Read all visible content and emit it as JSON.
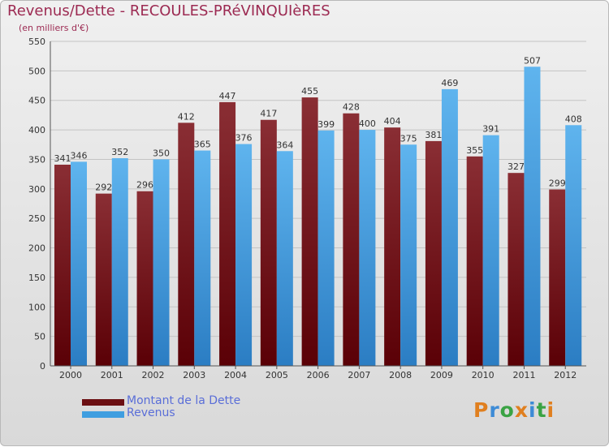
{
  "header": {
    "title": "Revenus/Dette - RECOULES-PRéVINQUIèRES",
    "subtitle": "(en milliers d'€)"
  },
  "legend": {
    "items": [
      {
        "label": "Montant de la Dette",
        "color": "#6b0f12"
      },
      {
        "label": "Revenus",
        "color": "#3f9ee0"
      }
    ]
  },
  "logo": {
    "text": "Proxiti",
    "letters": [
      "P",
      "r",
      "o",
      "x",
      "i",
      "t",
      "i"
    ],
    "colors": [
      "#e07f1f",
      "#3d8bd6",
      "#3aa344",
      "#e07f1f",
      "#3d8bd6",
      "#3aa344",
      "#e07f1f"
    ]
  },
  "chart_data": {
    "type": "bar",
    "title": "Revenus/Dette - RECOULES-PRéVINQUIèRES",
    "subtitle": "(en milliers d'€)",
    "xlabel": "",
    "ylabel": "",
    "ylim": [
      0,
      550
    ],
    "ytick_step": 50,
    "grid": true,
    "legend_position": "bottom-left",
    "categories": [
      "2000",
      "2001",
      "2002",
      "2003",
      "2004",
      "2005",
      "2006",
      "2007",
      "2008",
      "2009",
      "2010",
      "2011",
      "2012"
    ],
    "series": [
      {
        "name": "Montant de la Dette",
        "color": "#6b0f12",
        "values": [
          341,
          292,
          296,
          412,
          447,
          417,
          455,
          428,
          404,
          381,
          355,
          327,
          299
        ]
      },
      {
        "name": "Revenus",
        "color": "#3f9ee0",
        "values": [
          346,
          352,
          350,
          365,
          376,
          364,
          399,
          400,
          375,
          469,
          391,
          507,
          408
        ]
      }
    ]
  }
}
